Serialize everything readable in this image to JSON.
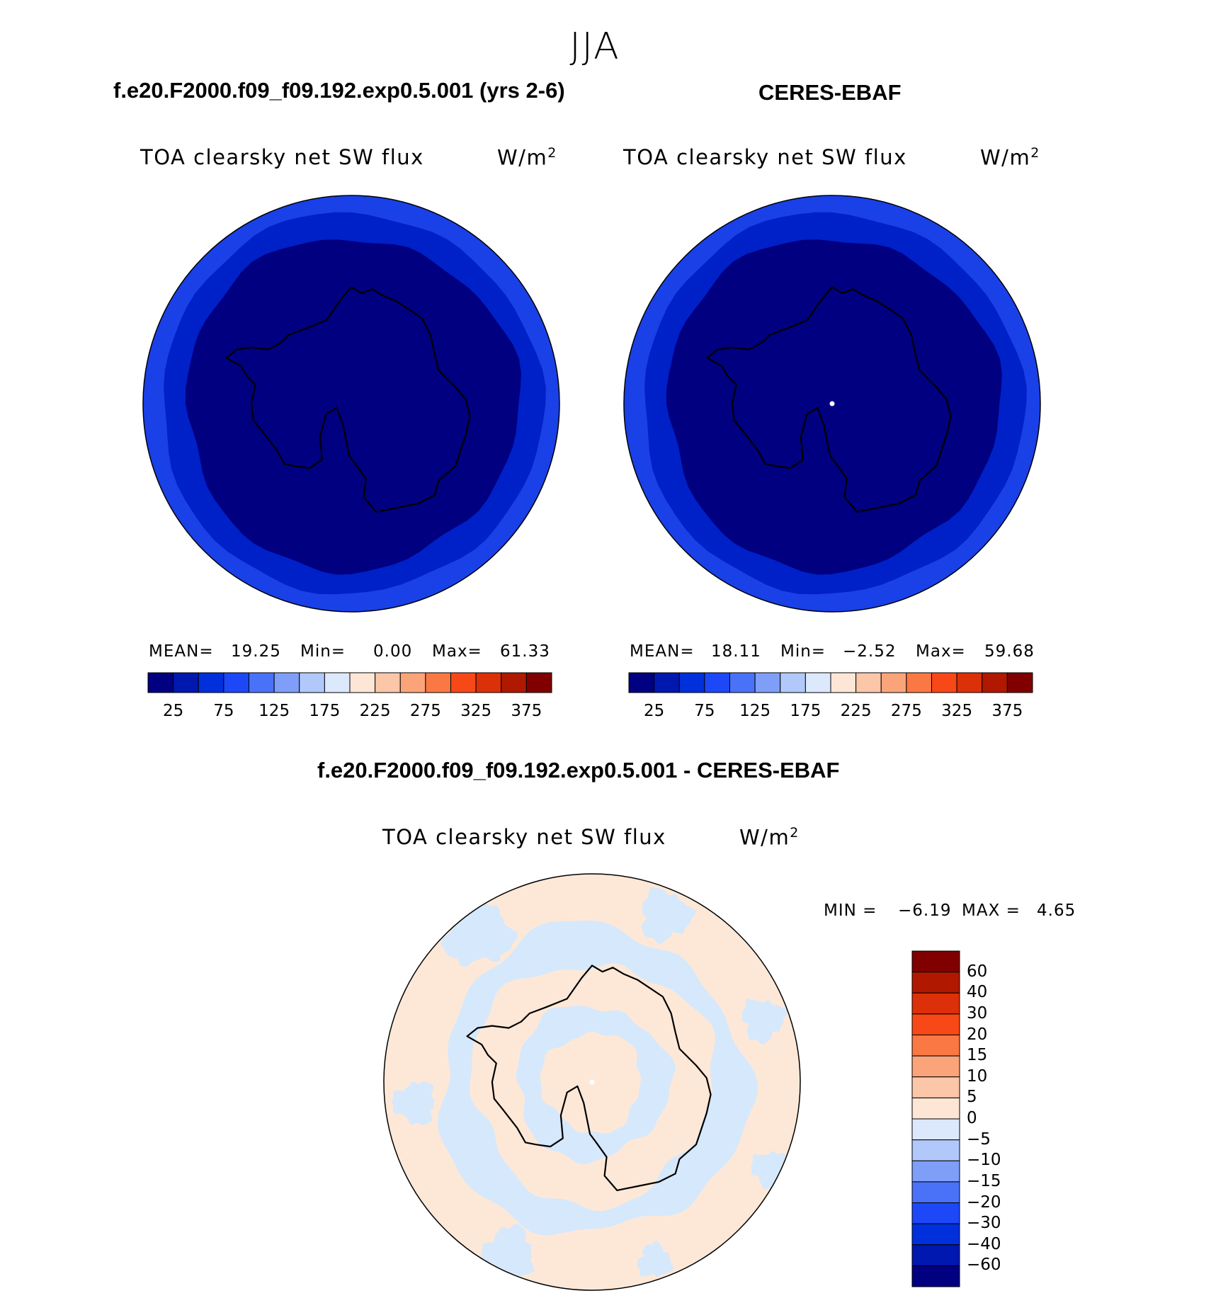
{
  "figure": {
    "season": "JJA",
    "colors": {
      "dark_blue": "#000080",
      "ring_blue": "#0020c8",
      "edge_blue": "#1a40e8",
      "diff_pos": "#fde8d8",
      "diff_neg": "#d6e8fb",
      "coast": "#000000"
    }
  },
  "panels": [
    {
      "title": "f.e20.F2000.f09_f09.192.exp0.5.001 (yrs 2-6)",
      "variable": "TOA clearsky net SW flux",
      "units": "W/m",
      "units_sup": "2",
      "stats": {
        "mean_label": "MEAN=",
        "mean": "19.25",
        "min_label": "Min=",
        "min": "0.00",
        "max_label": "Max=",
        "max": "61.33"
      }
    },
    {
      "title": "CERES-EBAF",
      "variable": "TOA clearsky net SW flux",
      "units": "W/m",
      "units_sup": "2",
      "stats": {
        "mean_label": "MEAN=",
        "mean": "18.11",
        "min_label": "Min=",
        "min": "−2.52",
        "max_label": "Max=",
        "max": "59.68"
      }
    },
    {
      "title": "f.e20.F2000.f09_f09.192.exp0.5.001 - CERES-EBAF",
      "variable": "TOA clearsky net SW flux",
      "units": "W/m",
      "units_sup": "2",
      "stats": {
        "min_label": "MIN =",
        "min": "−6.19",
        "max_label": "MAX =",
        "max": "4.65"
      }
    }
  ],
  "chart_data": [
    {
      "type": "heatmap",
      "projection": "south-polar-stereographic",
      "title": "f.e20.F2000.f09_f09.192.exp0.5.001 (yrs 2-6)",
      "variable": "TOA clearsky net SW flux",
      "units": "W/m2",
      "mean": 19.25,
      "min": 0.0,
      "max": 61.33,
      "colorbar": {
        "orientation": "horizontal",
        "tick_labels": [
          "25",
          "75",
          "125",
          "175",
          "225",
          "275",
          "325",
          "375"
        ],
        "colors": [
          "#000080",
          "#0018b0",
          "#0030dc",
          "#1c48f8",
          "#4a72f8",
          "#7e9ef8",
          "#b0c8fa",
          "#dce8fc",
          "#fde6d6",
          "#fcc6a8",
          "#fba47a",
          "#fa7844",
          "#f84818",
          "#dc3008",
          "#b01800",
          "#800000"
        ]
      },
      "regions": [
        {
          "range": "0-25",
          "location": "Antarctic continent and surrounding ocean"
        },
        {
          "range": "25-50",
          "location": "outer ring"
        },
        {
          "range": "50-75",
          "location": "outermost edge"
        }
      ]
    },
    {
      "type": "heatmap",
      "projection": "south-polar-stereographic",
      "title": "CERES-EBAF",
      "variable": "TOA clearsky net SW flux",
      "units": "W/m2",
      "mean": 18.11,
      "min": -2.52,
      "max": 59.68,
      "colorbar": {
        "orientation": "horizontal",
        "tick_labels": [
          "25",
          "75",
          "125",
          "175",
          "225",
          "275",
          "325",
          "375"
        ],
        "colors": [
          "#000080",
          "#0018b0",
          "#0030dc",
          "#1c48f8",
          "#4a72f8",
          "#7e9ef8",
          "#b0c8fa",
          "#dce8fc",
          "#fde6d6",
          "#fcc6a8",
          "#fba47a",
          "#fa7844",
          "#f84818",
          "#dc3008",
          "#b01800",
          "#800000"
        ]
      },
      "regions": [
        {
          "range": "0-25",
          "location": "Antarctic continent and surrounding ocean"
        },
        {
          "range": "25-50",
          "location": "outer ring"
        },
        {
          "range": "50-75",
          "location": "outermost edge"
        }
      ]
    },
    {
      "type": "heatmap",
      "projection": "south-polar-stereographic",
      "title": "f.e20.F2000.f09_f09.192.exp0.5.001 - CERES-EBAF",
      "variable": "TOA clearsky net SW flux",
      "units": "W/m2",
      "min": -6.19,
      "max": 4.65,
      "colorbar": {
        "orientation": "vertical",
        "tick_labels": [
          "60",
          "40",
          "30",
          "20",
          "15",
          "10",
          "5",
          "0",
          "−5",
          "−10",
          "−15",
          "−20",
          "−30",
          "−40",
          "−60"
        ],
        "colors": [
          "#800000",
          "#b01800",
          "#dc3008",
          "#f84818",
          "#fa7844",
          "#fba47a",
          "#fcc6a8",
          "#fde6d6",
          "#dce8fc",
          "#b0c8fa",
          "#7e9ef8",
          "#4a72f8",
          "#1c48f8",
          "#0030dc",
          "#0018b0",
          "#000080"
        ]
      },
      "regions": [
        {
          "range": "0-5",
          "location": "most of ocean and East Antarctic interior"
        },
        {
          "range": "-5-0",
          "location": "patchy bands over Southern Ocean and ring near pole"
        }
      ]
    }
  ]
}
